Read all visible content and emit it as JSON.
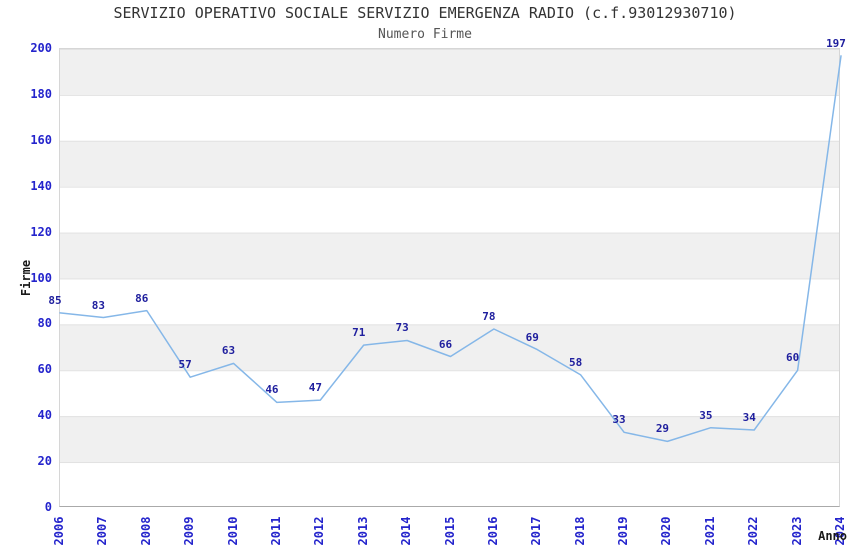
{
  "chart_data": {
    "type": "line",
    "title": "SERVIZIO OPERATIVO SOCIALE SERVIZIO EMERGENZA RADIO (c.f.93012930710)",
    "subtitle": "Numero Firme",
    "xlabel": "Anno",
    "ylabel": "Firme",
    "x": [
      "2006",
      "2007",
      "2008",
      "2009",
      "2010",
      "2011",
      "2012",
      "2013",
      "2014",
      "2015",
      "2016",
      "2017",
      "2018",
      "2019",
      "2020",
      "2021",
      "2022",
      "2023",
      "2024"
    ],
    "values": [
      85,
      83,
      86,
      57,
      63,
      46,
      47,
      71,
      73,
      66,
      78,
      69,
      58,
      33,
      29,
      35,
      34,
      60,
      197
    ],
    "ylim": [
      0,
      200
    ],
    "ytick_step": 20,
    "grid": true,
    "background_bands": "alternating gray/white horizontal stripes every 20 units, gray at 180-200 down to 20-40",
    "legend": "none",
    "data_labels": "value shown above each point",
    "colors": {
      "line": "#85b7e8",
      "tick-label": "#2424cc",
      "data-label": "#1f1f9e",
      "band": "#f0f0f0",
      "grid": "#e2e2e2",
      "title": "#333333",
      "subtitle": "#555555",
      "axis-label": "#1a1a1a",
      "spine": "#d6d6d6",
      "spine-bottom": "#aaaaaa"
    }
  }
}
